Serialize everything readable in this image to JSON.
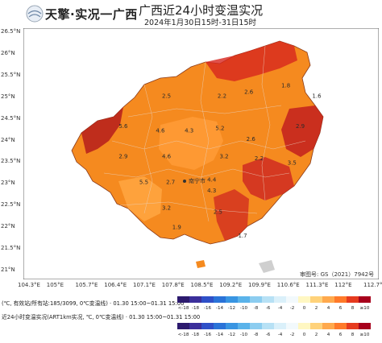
{
  "header": {
    "brand": "天擎·实况一广西",
    "title": "广西近24小时变温实况",
    "subtitle": "2024年1月30日15时-31日15时"
  },
  "axes": {
    "lon_ticks": [
      "104.3°E",
      "105°E",
      "105.7°E",
      "106.4°E",
      "107.1°E",
      "107.8°E",
      "108.5°E",
      "109.2°E",
      "109.9°E",
      "110.6°E",
      "111.3°E",
      "112°E",
      "112.7°E"
    ],
    "lat_ticks": [
      "26.5°N",
      "26°N",
      "25.5°N",
      "25°N",
      "24.5°N",
      "24°N",
      "23.5°N",
      "23°N",
      "22.5°N",
      "22°N",
      "21.5°N",
      "21°N"
    ]
  },
  "map": {
    "capital_label": "南宁市",
    "copyright": "审图号: GS（2021）7942号",
    "value_labels": [
      {
        "text": "2.5",
        "lon": 107.55,
        "lat": 24.95
      },
      {
        "text": "2.2",
        "lon": 108.9,
        "lat": 24.95
      },
      {
        "text": "2.6",
        "lon": 109.55,
        "lat": 25.05
      },
      {
        "text": "1.8",
        "lon": 110.45,
        "lat": 25.2
      },
      {
        "text": "1.6",
        "lon": 111.2,
        "lat": 24.95
      },
      {
        "text": "5.6",
        "lon": 106.5,
        "lat": 24.25
      },
      {
        "text": "4.6",
        "lon": 107.4,
        "lat": 24.15
      },
      {
        "text": "4.3",
        "lon": 108.1,
        "lat": 24.15
      },
      {
        "text": "5.2",
        "lon": 108.85,
        "lat": 24.2
      },
      {
        "text": "2.9",
        "lon": 110.8,
        "lat": 24.25
      },
      {
        "text": "2.6",
        "lon": 109.6,
        "lat": 23.95
      },
      {
        "text": "2.9",
        "lon": 106.5,
        "lat": 23.55
      },
      {
        "text": "4.6",
        "lon": 107.55,
        "lat": 23.55
      },
      {
        "text": "3.2",
        "lon": 108.95,
        "lat": 23.55
      },
      {
        "text": "2.2",
        "lon": 109.8,
        "lat": 23.5
      },
      {
        "text": "3.5",
        "lon": 110.6,
        "lat": 23.4
      },
      {
        "text": "5.5",
        "lon": 107.0,
        "lat": 22.95
      },
      {
        "text": "2.7",
        "lon": 107.65,
        "lat": 22.95
      },
      {
        "text": "4.4",
        "lon": 108.65,
        "lat": 23.0
      },
      {
        "text": "4.3",
        "lon": 108.65,
        "lat": 22.75
      },
      {
        "text": "3.2",
        "lon": 107.55,
        "lat": 22.35
      },
      {
        "text": "2.5",
        "lon": 108.8,
        "lat": 22.25
      },
      {
        "text": "1.9",
        "lon": 107.8,
        "lat": 21.9
      },
      {
        "text": "1.7",
        "lon": 109.4,
        "lat": 21.7
      }
    ]
  },
  "legend": {
    "bins": [
      "<-18",
      "-18",
      "-16",
      "-14",
      "-12",
      "-10",
      "-8",
      "-6",
      "-4",
      "-2",
      "0",
      "2",
      "4",
      "6",
      "8",
      "≥10"
    ],
    "colors": [
      "#2c1a6e",
      "#3b2f9b",
      "#2f50c8",
      "#2a73d8",
      "#3995e2",
      "#5ab3ea",
      "#8ccdf0",
      "#b7e1f5",
      "#daf0fa",
      "#f2f9fc",
      "#fff7c2",
      "#ffd27a",
      "#ffa94d",
      "#ff7a2a",
      "#e63b1f",
      "#a7001c"
    ],
    "caption_top": "(℃, 有效站/所有站:185/3099, 0℃变温线) · 01.30 15:00~01.31 15:00",
    "caption_bottom": "近24小时变温实况(ART1km实况, ℃, 0℃变温线) · 01.30 15:00~01.31 15:00"
  }
}
